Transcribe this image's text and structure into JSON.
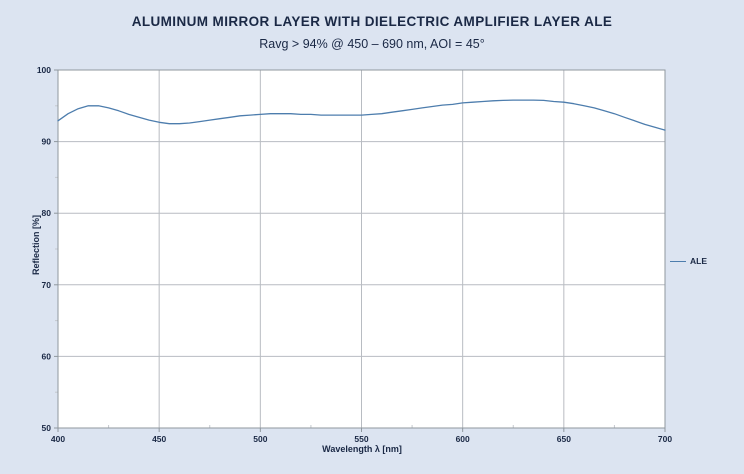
{
  "colors": {
    "background": "#dce4f1",
    "plot_background": "#ffffff",
    "axis_border": "#8f979e",
    "gridline": "#b8bcc2",
    "minor_tick": "#c4c8ce",
    "text": "#1a2845",
    "series_line": "#4d7dad"
  },
  "chart_data": {
    "type": "line",
    "title": "ALUMINUM MIRROR LAYER WITH DIELECTRIC AMPLIFIER LAYER ALE",
    "subtitle": "Ravg > 94% @ 450 – 690 nm, AOI = 45°",
    "xlabel": "Wavelength λ [nm]",
    "ylabel": "Reflection [%]",
    "xlim": [
      400,
      700
    ],
    "ylim": [
      50,
      100
    ],
    "x_major_ticks": [
      400,
      450,
      500,
      550,
      600,
      650,
      700
    ],
    "x_minor_ticks": [
      425,
      475,
      525,
      575,
      625,
      675
    ],
    "y_major_ticks": [
      50,
      60,
      70,
      80,
      90,
      100
    ],
    "y_minor_ticks": [
      55,
      65,
      75,
      85,
      95
    ],
    "grid": "major",
    "legend_position": "right-center",
    "series": [
      {
        "name": "ALE",
        "color": "#4d7dad",
        "x": [
          400,
          405,
          410,
          415,
          420,
          425,
          430,
          435,
          440,
          445,
          450,
          455,
          460,
          465,
          470,
          475,
          480,
          485,
          490,
          495,
          500,
          505,
          510,
          515,
          520,
          525,
          530,
          535,
          540,
          545,
          550,
          555,
          560,
          565,
          570,
          575,
          580,
          585,
          590,
          595,
          600,
          605,
          610,
          615,
          620,
          625,
          630,
          635,
          640,
          645,
          650,
          655,
          660,
          665,
          670,
          675,
          680,
          685,
          690,
          695,
          700
        ],
        "y": [
          92.9,
          93.9,
          94.6,
          95.0,
          95.0,
          94.7,
          94.3,
          93.8,
          93.4,
          93.0,
          92.7,
          92.5,
          92.5,
          92.6,
          92.8,
          93.0,
          93.2,
          93.4,
          93.6,
          93.7,
          93.8,
          93.9,
          93.9,
          93.9,
          93.8,
          93.8,
          93.7,
          93.7,
          93.7,
          93.7,
          93.7,
          93.8,
          93.9,
          94.1,
          94.3,
          94.5,
          94.7,
          94.9,
          95.1,
          95.2,
          95.4,
          95.5,
          95.6,
          95.7,
          95.75,
          95.8,
          95.8,
          95.8,
          95.75,
          95.6,
          95.5,
          95.3,
          95.0,
          94.7,
          94.3,
          93.9,
          93.4,
          92.9,
          92.4,
          92.0,
          91.6
        ]
      }
    ]
  }
}
